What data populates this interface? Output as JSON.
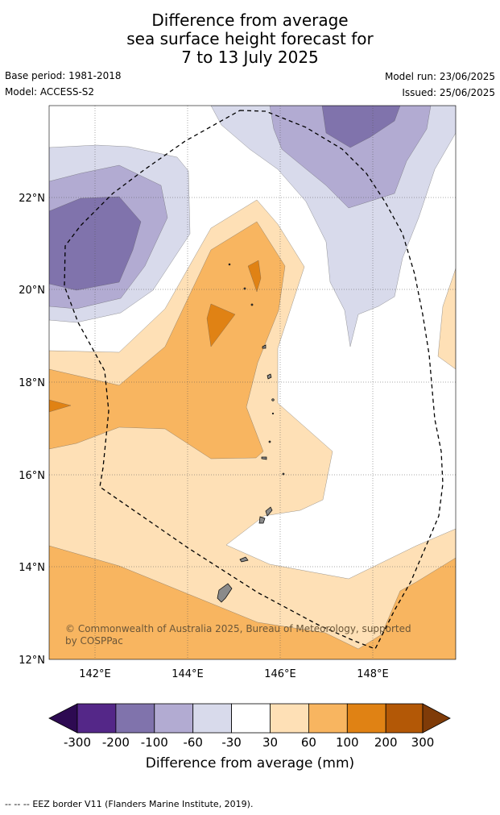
{
  "title": {
    "line1": "Difference from average",
    "line2": "sea surface height forecast for",
    "line3": "7 to 13 July 2025"
  },
  "meta": {
    "base_period": "Base period: 1981-2018",
    "model": "Model: ACCESS-S2",
    "model_run": "Model run: 23/06/2025",
    "issued": "Issued: 25/06/2025"
  },
  "map": {
    "lat_labels": [
      "22°N",
      "20°N",
      "18°N",
      "16°N",
      "14°N",
      "12°N"
    ],
    "lon_labels": [
      "142°E",
      "144°E",
      "146°E",
      "148°E"
    ],
    "lat_range": [
      12,
      24
    ],
    "lon_range": [
      141,
      149.8
    ],
    "copyright": "© Commonwealth of Australia 2025, Bureau of Meteorology, supported by COSPPac"
  },
  "colorbar": {
    "title": "Difference from average (mm)",
    "labels": [
      "-300",
      "-200",
      "-100",
      "-60",
      "-30",
      "30",
      "60",
      "100",
      "200",
      "300"
    ],
    "colors": {
      "lt_neg300": "#2d0a52",
      "neg300_neg200": "#542788",
      "neg200_neg100": "#8073ac",
      "neg100_neg60": "#b2abd2",
      "neg60_neg30": "#d8daeb",
      "neg30_30": "#ffffff",
      "p30_60": "#fee0b6",
      "p60_100": "#f8b560",
      "p100_200": "#e08214",
      "p200_300": "#b35806",
      "gt300": "#7f3b08"
    }
  },
  "footer": {
    "legend_symbol": "--  --  --",
    "legend_text": "EEZ border V11 (Flanders Marine Institute, 2019)."
  }
}
